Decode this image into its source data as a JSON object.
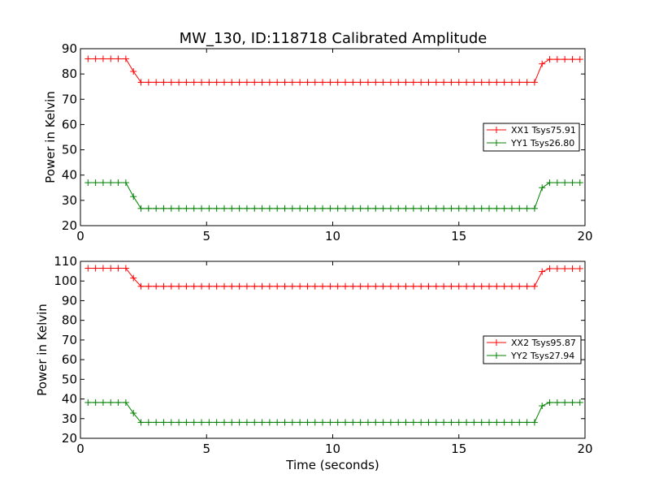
{
  "figure": {
    "title": "MW_130, ID:118718 Calibrated Amplitude"
  },
  "chart_data": [
    {
      "type": "line",
      "title": "MW_130, ID:118718 Calibrated Amplitude",
      "xlabel": "",
      "ylabel": "Power in Kelvin",
      "xlim": [
        0,
        20
      ],
      "ylim": [
        20,
        90
      ],
      "xticks": [
        0,
        5,
        10,
        15,
        20
      ],
      "yticks": [
        20,
        30,
        40,
        50,
        60,
        70,
        80,
        90
      ],
      "grid": false,
      "legend_position": "center-right",
      "x": [
        0.3,
        0.6,
        0.9,
        1.2,
        1.5,
        1.8,
        2.1,
        2.4,
        2.7,
        3.0,
        3.3,
        3.6,
        3.9,
        4.2,
        4.5,
        4.8,
        5.1,
        5.4,
        5.7,
        6.0,
        6.3,
        6.6,
        6.9,
        7.2,
        7.5,
        7.8,
        8.1,
        8.4,
        8.7,
        9.0,
        9.3,
        9.6,
        9.9,
        10.2,
        10.5,
        10.8,
        11.1,
        11.4,
        11.7,
        12.0,
        12.3,
        12.6,
        12.9,
        13.2,
        13.5,
        13.8,
        14.1,
        14.4,
        14.7,
        15.0,
        15.3,
        15.6,
        15.9,
        16.2,
        16.5,
        16.8,
        17.1,
        17.4,
        17.7,
        18.0,
        18.3,
        18.6,
        18.9,
        19.2,
        19.5,
        19.8
      ],
      "series": [
        {
          "name": "XX1 Tsys75.91",
          "color": "#ff0000",
          "values": [
            86,
            86,
            86,
            86,
            86,
            86,
            81,
            76.7,
            76.7,
            76.7,
            76.7,
            76.7,
            76.7,
            76.7,
            76.7,
            76.7,
            76.7,
            76.7,
            76.7,
            76.7,
            76.7,
            76.7,
            76.7,
            76.7,
            76.7,
            76.7,
            76.7,
            76.7,
            76.7,
            76.7,
            76.7,
            76.7,
            76.7,
            76.7,
            76.7,
            76.7,
            76.7,
            76.7,
            76.7,
            76.7,
            76.7,
            76.7,
            76.7,
            76.7,
            76.7,
            76.7,
            76.7,
            76.7,
            76.7,
            76.7,
            76.7,
            76.7,
            76.7,
            76.7,
            76.7,
            76.7,
            76.7,
            76.7,
            76.7,
            76.7,
            84,
            85.8,
            85.8,
            85.8,
            85.8,
            85.8
          ]
        },
        {
          "name": "YY1 Tsys26.80",
          "color": "#008000",
          "values": [
            37,
            37,
            37,
            37,
            37,
            37,
            31.5,
            26.8,
            26.8,
            26.8,
            26.8,
            26.8,
            26.8,
            26.8,
            26.8,
            26.8,
            26.8,
            26.8,
            26.8,
            26.8,
            26.8,
            26.8,
            26.8,
            26.8,
            26.8,
            26.8,
            26.8,
            26.8,
            26.8,
            26.8,
            26.8,
            26.8,
            26.8,
            26.8,
            26.8,
            26.8,
            26.8,
            26.8,
            26.8,
            26.8,
            26.8,
            26.8,
            26.8,
            26.8,
            26.8,
            26.8,
            26.8,
            26.8,
            26.8,
            26.8,
            26.8,
            26.8,
            26.8,
            26.8,
            26.8,
            26.8,
            26.8,
            26.8,
            26.8,
            26.8,
            35,
            37,
            37,
            37,
            37,
            37
          ]
        }
      ]
    },
    {
      "type": "line",
      "title": "",
      "xlabel": "Time (seconds)",
      "ylabel": "Power in Kelvin",
      "xlim": [
        0,
        20
      ],
      "ylim": [
        20,
        110
      ],
      "xticks": [
        0,
        5,
        10,
        15,
        20
      ],
      "yticks": [
        20,
        30,
        40,
        50,
        60,
        70,
        80,
        90,
        100,
        110
      ],
      "grid": false,
      "legend_position": "center-right",
      "x": [
        0.3,
        0.6,
        0.9,
        1.2,
        1.5,
        1.8,
        2.1,
        2.4,
        2.7,
        3.0,
        3.3,
        3.6,
        3.9,
        4.2,
        4.5,
        4.8,
        5.1,
        5.4,
        5.7,
        6.0,
        6.3,
        6.6,
        6.9,
        7.2,
        7.5,
        7.8,
        8.1,
        8.4,
        8.7,
        9.0,
        9.3,
        9.6,
        9.9,
        10.2,
        10.5,
        10.8,
        11.1,
        11.4,
        11.7,
        12.0,
        12.3,
        12.6,
        12.9,
        13.2,
        13.5,
        13.8,
        14.1,
        14.4,
        14.7,
        15.0,
        15.3,
        15.6,
        15.9,
        16.2,
        16.5,
        16.8,
        17.1,
        17.4,
        17.7,
        18.0,
        18.3,
        18.6,
        18.9,
        19.2,
        19.5,
        19.8
      ],
      "series": [
        {
          "name": "XX2 Tsys95.87",
          "color": "#ff0000",
          "values": [
            106.5,
            106.5,
            106.5,
            106.5,
            106.5,
            106.5,
            101.5,
            97.3,
            97.3,
            97.3,
            97.3,
            97.3,
            97.3,
            97.3,
            97.3,
            97.3,
            97.3,
            97.3,
            97.3,
            97.3,
            97.3,
            97.3,
            97.3,
            97.3,
            97.3,
            97.3,
            97.3,
            97.3,
            97.3,
            97.3,
            97.3,
            97.3,
            97.3,
            97.3,
            97.3,
            97.3,
            97.3,
            97.3,
            97.3,
            97.3,
            97.3,
            97.3,
            97.3,
            97.3,
            97.3,
            97.3,
            97.3,
            97.3,
            97.3,
            97.3,
            97.3,
            97.3,
            97.3,
            97.3,
            97.3,
            97.3,
            97.3,
            97.3,
            97.3,
            97.3,
            104.8,
            106.3,
            106.3,
            106.3,
            106.3,
            106.3
          ]
        },
        {
          "name": "YY2 Tsys27.94",
          "color": "#008000",
          "values": [
            38.2,
            38.2,
            38.2,
            38.2,
            38.2,
            38.2,
            32.8,
            28.1,
            28.1,
            28.1,
            28.1,
            28.1,
            28.1,
            28.1,
            28.1,
            28.1,
            28.1,
            28.1,
            28.1,
            28.1,
            28.1,
            28.1,
            28.1,
            28.1,
            28.1,
            28.1,
            28.1,
            28.1,
            28.1,
            28.1,
            28.1,
            28.1,
            28.1,
            28.1,
            28.1,
            28.1,
            28.1,
            28.1,
            28.1,
            28.1,
            28.1,
            28.1,
            28.1,
            28.1,
            28.1,
            28.1,
            28.1,
            28.1,
            28.1,
            28.1,
            28.1,
            28.1,
            28.1,
            28.1,
            28.1,
            28.1,
            28.1,
            28.1,
            28.1,
            28.1,
            36.5,
            38.2,
            38.2,
            38.2,
            38.2,
            38.2
          ]
        }
      ]
    }
  ]
}
